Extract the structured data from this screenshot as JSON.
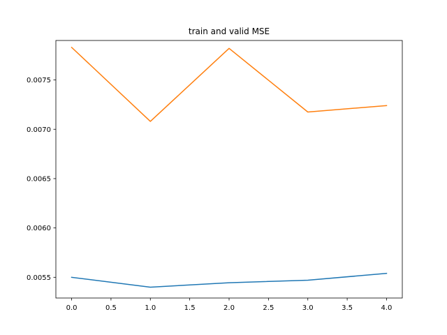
{
  "chart_data": {
    "type": "line",
    "title": "train and valid MSE",
    "xlabel": "",
    "ylabel": "",
    "xlim": [
      -0.2,
      4.2
    ],
    "ylim": [
      0.00529,
      0.0079
    ],
    "xticks": [
      0.0,
      0.5,
      1.0,
      1.5,
      2.0,
      2.5,
      3.0,
      3.5,
      4.0
    ],
    "xtick_labels": [
      "0.0",
      "0.5",
      "1.0",
      "1.5",
      "2.0",
      "2.5",
      "3.0",
      "3.5",
      "4.0"
    ],
    "yticks": [
      0.0055,
      0.006,
      0.0065,
      0.007,
      0.0075
    ],
    "ytick_labels": [
      "0.0055",
      "0.0060",
      "0.0065",
      "0.0070",
      "0.0075"
    ],
    "grid": false,
    "x": [
      0,
      1,
      2,
      3,
      4
    ],
    "series": [
      {
        "values": [
          0.0055,
          0.0054,
          0.005445,
          0.00547,
          0.00554
        ],
        "color": "#1f77b4"
      },
      {
        "values": [
          0.00783,
          0.00708,
          0.00782,
          0.007175,
          0.00724
        ],
        "color": "#ff7f0e"
      }
    ]
  }
}
